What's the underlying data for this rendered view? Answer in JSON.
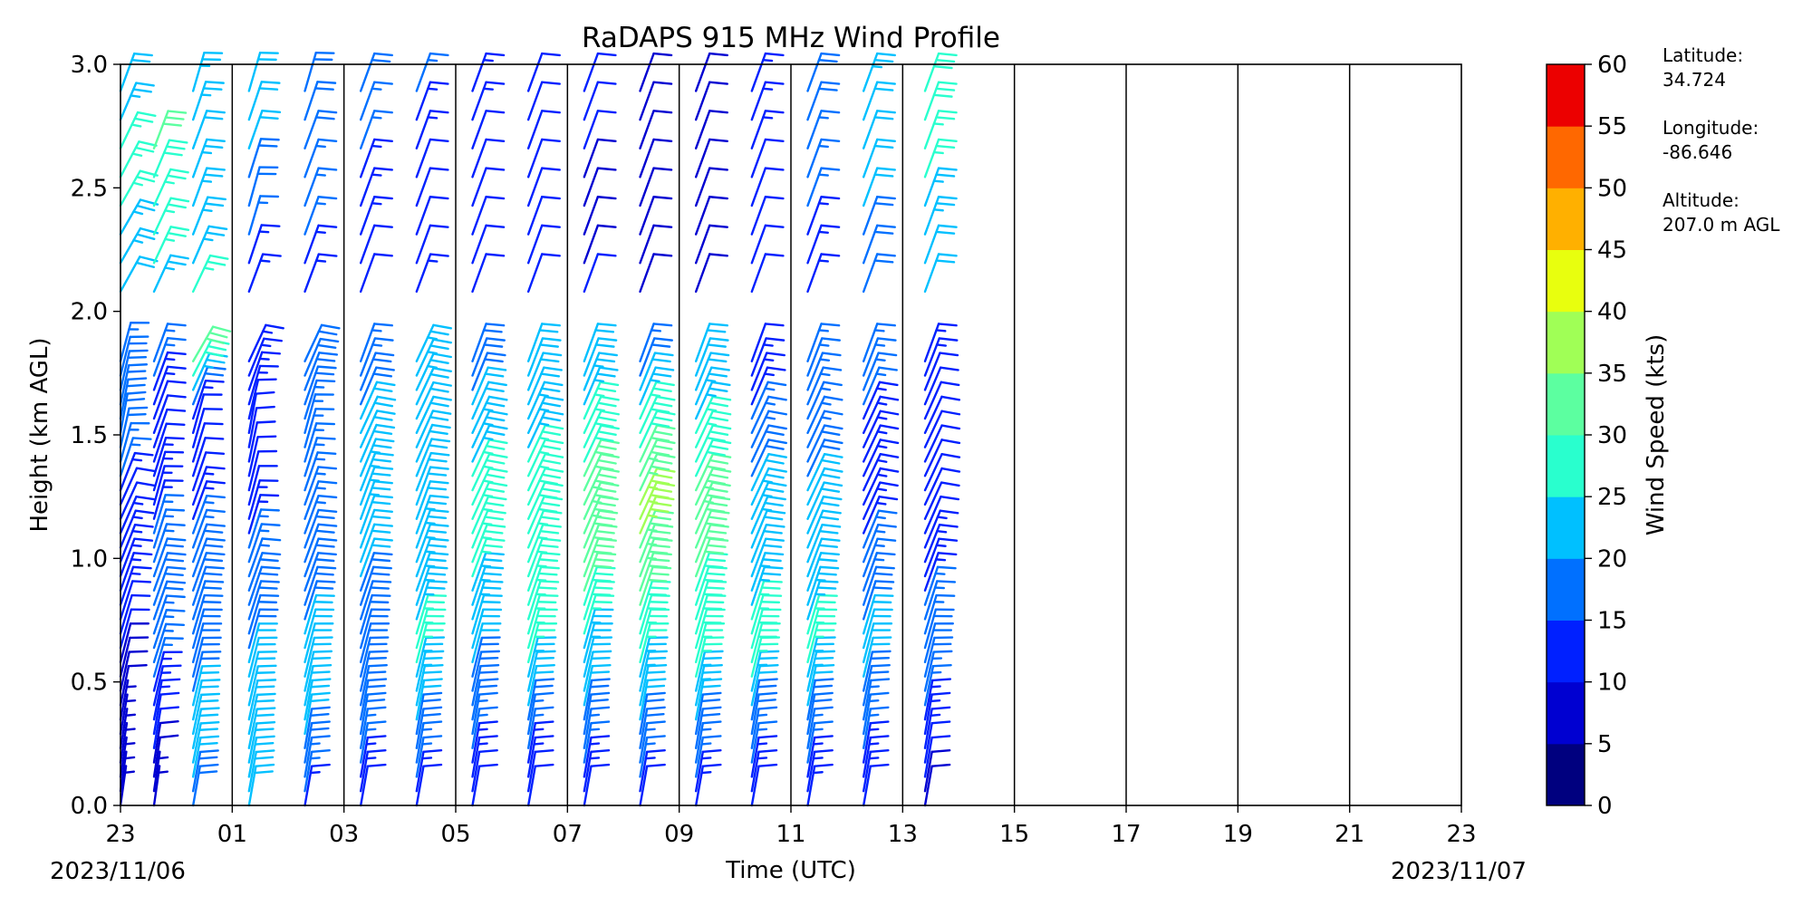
{
  "chart_data": {
    "type": "wind_barb_profile",
    "title": "RaDAPS 915 MHz Wind Profile",
    "xlabel": "Time (UTC)",
    "ylabel": "Height (km AGL)",
    "x_tick_labels": [
      "23",
      "01",
      "03",
      "05",
      "07",
      "09",
      "11",
      "13",
      "15",
      "17",
      "19",
      "21",
      "23"
    ],
    "x_start_hour": 23,
    "x_span_hours": 24,
    "date_start": "2023/11/06",
    "date_end": "2023/11/07",
    "y_ticks": [
      0.0,
      0.5,
      1.0,
      1.5,
      2.0,
      2.5,
      3.0
    ],
    "y_tick_labels": [
      "0.0",
      "0.5",
      "1.0",
      "1.5",
      "2.0",
      "2.5",
      "3.0"
    ],
    "ylim": [
      0.0,
      3.0
    ],
    "vertical_gridlines_hours": [
      1,
      3,
      5,
      7,
      9,
      11,
      13,
      15,
      17,
      19,
      21
    ],
    "data_end_hour": 14.2,
    "colorbar": {
      "label": "Wind Speed (kts)",
      "bounds": [
        0,
        5,
        10,
        15,
        20,
        25,
        30,
        35,
        40,
        45,
        50,
        55,
        60
      ],
      "tick_labels": [
        "0",
        "5",
        "10",
        "15",
        "20",
        "25",
        "30",
        "35",
        "40",
        "45",
        "50",
        "55",
        "60"
      ],
      "colors": [
        "#00007f",
        "#0000d1",
        "#0020ff",
        "#0070ff",
        "#00c0ff",
        "#29ffce",
        "#5cffa0",
        "#a0ff56",
        "#e8ff0e",
        "#ffb000",
        "#ff6800",
        "#ec0000",
        "#7f0000"
      ]
    },
    "profiles": [
      {
        "time_hour": 23.0,
        "winds": [
          [
            0.0,
            8,
            5
          ],
          [
            0.3,
            10,
            7
          ],
          [
            0.6,
            15,
            10
          ],
          [
            0.9,
            20,
            14
          ],
          [
            1.2,
            25,
            12
          ],
          [
            1.5,
            10,
            20
          ],
          [
            1.8,
            15,
            17
          ],
          [
            2.1,
            30,
            22
          ],
          [
            2.4,
            30,
            25
          ],
          [
            2.7,
            25,
            27
          ],
          [
            2.9,
            20,
            20
          ]
        ]
      },
      {
        "time_hour": 23.6,
        "winds": [
          [
            0.0,
            8,
            6
          ],
          [
            0.3,
            10,
            12
          ],
          [
            0.6,
            18,
            17
          ],
          [
            0.9,
            20,
            18
          ],
          [
            1.2,
            15,
            14
          ],
          [
            1.5,
            20,
            11
          ],
          [
            1.8,
            20,
            17
          ],
          [
            2.1,
            25,
            25
          ],
          [
            2.4,
            25,
            27
          ],
          [
            2.7,
            20,
            31
          ]
        ]
      },
      {
        "time_hour": 0.3,
        "winds": [
          [
            0.0,
            10,
            19
          ],
          [
            0.3,
            12,
            22
          ],
          [
            0.6,
            15,
            18
          ],
          [
            0.9,
            20,
            20
          ],
          [
            1.2,
            20,
            13
          ],
          [
            1.5,
            15,
            10
          ],
          [
            1.8,
            30,
            32
          ],
          [
            2.1,
            25,
            25
          ],
          [
            2.4,
            20,
            24
          ],
          [
            2.7,
            20,
            22
          ],
          [
            2.95,
            15,
            25
          ]
        ]
      },
      {
        "time_hour": 1.3,
        "winds": [
          [
            0.0,
            10,
            21
          ],
          [
            0.3,
            12,
            22
          ],
          [
            0.6,
            15,
            20
          ],
          [
            0.9,
            20,
            18
          ],
          [
            1.2,
            15,
            12
          ],
          [
            1.5,
            10,
            12
          ],
          [
            1.8,
            25,
            14
          ],
          [
            2.1,
            20,
            13
          ],
          [
            2.4,
            15,
            18
          ],
          [
            2.7,
            20,
            22
          ],
          [
            2.95,
            15,
            20
          ]
        ]
      },
      {
        "time_hour": 2.3,
        "winds": [
          [
            0.0,
            10,
            14
          ],
          [
            0.3,
            10,
            21
          ],
          [
            0.6,
            15,
            21
          ],
          [
            0.9,
            20,
            19
          ],
          [
            1.2,
            20,
            16
          ],
          [
            1.5,
            15,
            16
          ],
          [
            1.8,
            25,
            20
          ],
          [
            2.1,
            20,
            13
          ],
          [
            2.4,
            20,
            16
          ],
          [
            2.7,
            20,
            18
          ],
          [
            2.95,
            15,
            19
          ]
        ]
      },
      {
        "time_hour": 3.3,
        "winds": [
          [
            0.0,
            10,
            12
          ],
          [
            0.3,
            10,
            18
          ],
          [
            0.6,
            15,
            19
          ],
          [
            0.9,
            20,
            20
          ],
          [
            1.2,
            20,
            23
          ],
          [
            1.5,
            25,
            22
          ],
          [
            1.8,
            20,
            15
          ],
          [
            2.1,
            20,
            10
          ],
          [
            2.4,
            20,
            14
          ],
          [
            2.7,
            20,
            16
          ],
          [
            2.95,
            20,
            18
          ]
        ]
      },
      {
        "time_hour": 4.3,
        "winds": [
          [
            0.0,
            10,
            12
          ],
          [
            0.3,
            10,
            20
          ],
          [
            0.6,
            15,
            26
          ],
          [
            0.9,
            20,
            24
          ],
          [
            1.2,
            20,
            22
          ],
          [
            1.5,
            25,
            20
          ],
          [
            1.8,
            25,
            25
          ],
          [
            2.1,
            20,
            12
          ],
          [
            2.4,
            20,
            11
          ],
          [
            2.7,
            20,
            14
          ],
          [
            2.95,
            20,
            17
          ]
        ]
      },
      {
        "time_hour": 5.3,
        "winds": [
          [
            0.0,
            10,
            11
          ],
          [
            0.3,
            10,
            17
          ],
          [
            0.6,
            15,
            21
          ],
          [
            0.9,
            20,
            25
          ],
          [
            1.2,
            25,
            27
          ],
          [
            1.5,
            25,
            23
          ],
          [
            1.8,
            20,
            18
          ],
          [
            2.1,
            20,
            10
          ],
          [
            2.4,
            20,
            11
          ],
          [
            2.7,
            20,
            12
          ],
          [
            2.95,
            20,
            14
          ]
        ]
      },
      {
        "time_hour": 6.3,
        "winds": [
          [
            0.0,
            10,
            11
          ],
          [
            0.3,
            10,
            17
          ],
          [
            0.6,
            15,
            26
          ],
          [
            0.9,
            20,
            27
          ],
          [
            1.2,
            25,
            28
          ],
          [
            1.5,
            25,
            24
          ],
          [
            1.8,
            20,
            20
          ],
          [
            2.1,
            20,
            11
          ],
          [
            2.4,
            20,
            10
          ],
          [
            2.7,
            20,
            11
          ],
          [
            2.95,
            20,
            12
          ]
        ]
      },
      {
        "time_hour": 7.3,
        "winds": [
          [
            0.0,
            10,
            12
          ],
          [
            0.3,
            10,
            18
          ],
          [
            0.6,
            15,
            24
          ],
          [
            0.9,
            20,
            31
          ],
          [
            1.2,
            25,
            34
          ],
          [
            1.5,
            25,
            27
          ],
          [
            1.8,
            20,
            20
          ],
          [
            2.1,
            20,
            10
          ],
          [
            2.4,
            20,
            9
          ],
          [
            2.7,
            20,
            11
          ],
          [
            2.95,
            20,
            12
          ]
        ]
      },
      {
        "time_hour": 8.3,
        "winds": [
          [
            0.0,
            10,
            12
          ],
          [
            0.3,
            10,
            20
          ],
          [
            0.6,
            15,
            26
          ],
          [
            0.9,
            20,
            33
          ],
          [
            1.2,
            25,
            37
          ],
          [
            1.5,
            25,
            28
          ],
          [
            1.8,
            20,
            16
          ],
          [
            2.1,
            20,
            9
          ],
          [
            2.4,
            20,
            9
          ],
          [
            2.7,
            20,
            8
          ],
          [
            2.95,
            20,
            10
          ]
        ]
      },
      {
        "time_hour": 9.3,
        "winds": [
          [
            0.0,
            10,
            13
          ],
          [
            0.3,
            10,
            20
          ],
          [
            0.6,
            15,
            28
          ],
          [
            0.9,
            20,
            30
          ],
          [
            1.2,
            25,
            33
          ],
          [
            1.5,
            25,
            26
          ],
          [
            1.8,
            20,
            20
          ],
          [
            2.1,
            20,
            9
          ],
          [
            2.4,
            20,
            8
          ],
          [
            2.7,
            20,
            9
          ],
          [
            2.95,
            20,
            10
          ]
        ]
      },
      {
        "time_hour": 10.3,
        "winds": [
          [
            0.0,
            10,
            12
          ],
          [
            0.3,
            10,
            18
          ],
          [
            0.6,
            15,
            29
          ],
          [
            0.9,
            20,
            22
          ],
          [
            1.2,
            25,
            23
          ],
          [
            1.5,
            25,
            16
          ],
          [
            1.8,
            20,
            12
          ],
          [
            2.1,
            20,
            10
          ],
          [
            2.4,
            20,
            11
          ],
          [
            2.7,
            20,
            13
          ],
          [
            2.95,
            20,
            14
          ]
        ]
      },
      {
        "time_hour": 11.3,
        "winds": [
          [
            0.0,
            10,
            13
          ],
          [
            0.3,
            10,
            18
          ],
          [
            0.6,
            15,
            27
          ],
          [
            0.9,
            20,
            21
          ],
          [
            1.2,
            25,
            22
          ],
          [
            1.5,
            25,
            16
          ],
          [
            1.8,
            20,
            15
          ],
          [
            2.1,
            20,
            14
          ],
          [
            2.4,
            20,
            15
          ],
          [
            2.7,
            20,
            17
          ],
          [
            2.95,
            20,
            19
          ]
        ]
      },
      {
        "time_hour": 12.3,
        "winds": [
          [
            0.0,
            10,
            12
          ],
          [
            0.3,
            10,
            16
          ],
          [
            0.6,
            15,
            22
          ],
          [
            0.9,
            20,
            16
          ],
          [
            1.2,
            25,
            14
          ],
          [
            1.5,
            25,
            14
          ],
          [
            1.8,
            20,
            17
          ],
          [
            2.1,
            20,
            18
          ],
          [
            2.4,
            20,
            20
          ],
          [
            2.7,
            20,
            21
          ],
          [
            2.95,
            20,
            23
          ]
        ]
      },
      {
        "time_hour": 13.4,
        "winds": [
          [
            0.0,
            10,
            9
          ],
          [
            0.3,
            10,
            14
          ],
          [
            0.6,
            15,
            19
          ],
          [
            0.9,
            20,
            14
          ],
          [
            1.2,
            25,
            11
          ],
          [
            1.5,
            25,
            10
          ],
          [
            1.8,
            20,
            14
          ],
          [
            2.1,
            20,
            21
          ],
          [
            2.4,
            20,
            24
          ],
          [
            2.7,
            20,
            27
          ],
          [
            2.95,
            20,
            30
          ]
        ]
      }
    ],
    "station_info": [
      {
        "label": "Latitude:",
        "value": "34.724"
      },
      {
        "label": "Longitude:",
        "value": "-86.646"
      },
      {
        "label": "Altitude:",
        "value": "207.0 m AGL"
      }
    ]
  }
}
